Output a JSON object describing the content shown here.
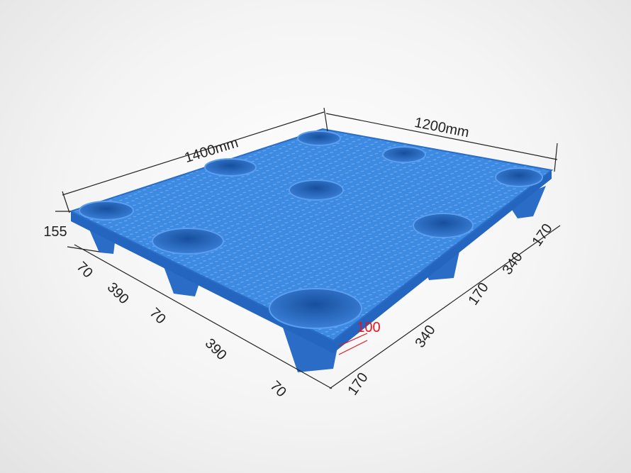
{
  "dimensions": {
    "length_label": "1400mm",
    "width_label": "1200mm",
    "height_label": "155",
    "left_side": [
      "70",
      "390",
      "70",
      "390",
      "70"
    ],
    "right_side": [
      "170",
      "340",
      "170",
      "340",
      "170"
    ],
    "leg_label": "100"
  },
  "colors": {
    "pallet": "#3a86e0",
    "pallet_dark": "#1f5fb8",
    "dimension_line": "#222222",
    "highlight": "#e8141c"
  }
}
